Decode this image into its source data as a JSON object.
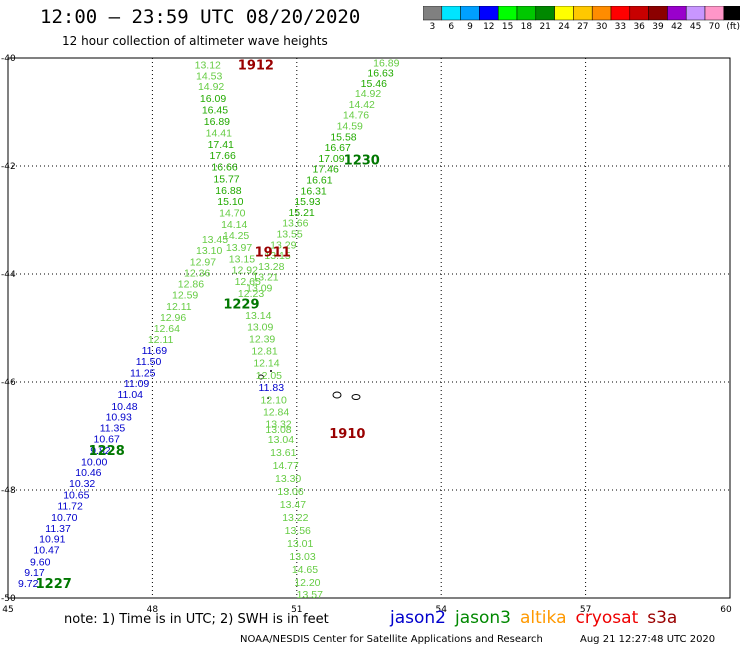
{
  "header": {
    "title": "12:00 — 23:59 UTC 08/20/2020",
    "subtitle": "12 hour collection of altimeter wave heights"
  },
  "colorbar": {
    "ticks": [
      "3",
      "6",
      "9",
      "12",
      "15",
      "18",
      "21",
      "24",
      "27",
      "30",
      "33",
      "36",
      "39",
      "42",
      "45",
      "70",
      "(ft)"
    ],
    "colors": [
      "#808080",
      "#00e5ff",
      "#00a0ff",
      "#0000ff",
      "#00ff00",
      "#00c800",
      "#008800",
      "#ffff00",
      "#ffc800",
      "#ff8c00",
      "#ff0000",
      "#c80000",
      "#8b0000",
      "#9900cc",
      "#c896ff",
      "#ff96c8",
      "#000000"
    ]
  },
  "footer": {
    "note": "note:  1) Time is in UTC;  2) SWH is in feet",
    "credit": "NOAA/NESDIS Center for Satellite Applications and Research",
    "timestamp": "Aug 21 12:27:48 UTC 2020"
  },
  "legend": [
    {
      "name": "jason2",
      "color": "#0000cc"
    },
    {
      "name": "jason3",
      "color": "#008800"
    },
    {
      "name": "altika",
      "color": "#ff9900"
    },
    {
      "name": "cryosat",
      "color": "#ee0000"
    },
    {
      "name": "s3a",
      "color": "#990000"
    }
  ],
  "chart_data": {
    "type": "scatter",
    "xlim": [
      45,
      60
    ],
    "ylim": [
      -50,
      -40
    ],
    "x_ticks": [
      "45",
      "48",
      "51",
      "54",
      "57",
      "60"
    ],
    "y_ticks": [
      "-40",
      "-42",
      "-44",
      "-46",
      "-48",
      "-50"
    ],
    "grid": true,
    "colors": {
      "light": "#66cc44",
      "mid": "#22aa00",
      "dark": "#007700",
      "blue": "#0000cc",
      "time_green": "#007700",
      "time_red": "#990000"
    },
    "series": [
      {
        "name": "jason2",
        "points": [
          {
            "x": 45.42,
            "y": -49.72,
            "v": "9.72",
            "c": "blue"
          },
          {
            "x": 45.55,
            "y": -49.52,
            "v": "9.17",
            "c": "blue"
          },
          {
            "x": 45.67,
            "y": -49.32,
            "v": "9.60",
            "c": "blue"
          },
          {
            "x": 45.8,
            "y": -49.1,
            "v": "10.47",
            "c": "blue"
          },
          {
            "x": 45.92,
            "y": -48.9,
            "v": "10.91",
            "c": "blue"
          },
          {
            "x": 46.04,
            "y": -48.7,
            "v": "11.37",
            "c": "blue"
          },
          {
            "x": 46.17,
            "y": -48.5,
            "v": "10.70",
            "c": "blue"
          },
          {
            "x": 46.29,
            "y": -48.29,
            "v": "11.72",
            "c": "blue"
          },
          {
            "x": 46.42,
            "y": -48.08,
            "v": "10.65",
            "c": "blue"
          },
          {
            "x": 46.54,
            "y": -47.87,
            "v": "10.32",
            "c": "blue"
          },
          {
            "x": 46.67,
            "y": -47.67,
            "v": "10.46",
            "c": "blue"
          },
          {
            "x": 46.79,
            "y": -47.47,
            "v": "10.00",
            "c": "blue"
          },
          {
            "x": 46.92,
            "y": -47.26,
            "v": "9.82",
            "c": "blue"
          },
          {
            "x": 47.05,
            "y": -47.05,
            "v": "10.67",
            "c": "blue"
          },
          {
            "x": 47.17,
            "y": -46.84,
            "v": "11.35",
            "c": "blue"
          },
          {
            "x": 47.3,
            "y": -46.64,
            "v": "10.93",
            "c": "blue"
          },
          {
            "x": 47.42,
            "y": -46.44,
            "v": "10.48",
            "c": "blue"
          },
          {
            "x": 47.54,
            "y": -46.22,
            "v": "11.04",
            "c": "blue"
          },
          {
            "x": 47.67,
            "y": -46.02,
            "v": "11.09",
            "c": "blue"
          },
          {
            "x": 47.8,
            "y": -45.82,
            "v": "11.25",
            "c": "blue"
          },
          {
            "x": 47.92,
            "y": -45.61,
            "v": "11.50",
            "c": "blue"
          },
          {
            "x": 48.04,
            "y": -45.41,
            "v": "11.69",
            "c": "blue"
          },
          {
            "x": 48.17,
            "y": -45.2,
            "v": "12.11",
            "c": "light"
          },
          {
            "x": 48.3,
            "y": -45.0,
            "v": "12.64",
            "c": "light"
          },
          {
            "x": 48.43,
            "y": -44.8,
            "v": "12.96",
            "c": "light"
          },
          {
            "x": 48.55,
            "y": -44.59,
            "v": "12.11",
            "c": "light"
          },
          {
            "x": 48.68,
            "y": -44.38,
            "v": "12.59",
            "c": "light"
          },
          {
            "x": 48.8,
            "y": -44.18,
            "v": "12.86",
            "c": "light"
          },
          {
            "x": 48.93,
            "y": -43.97,
            "v": "12.36",
            "c": "light"
          },
          {
            "x": 49.05,
            "y": -43.77,
            "v": "12.97",
            "c": "light"
          },
          {
            "x": 49.18,
            "y": -43.56,
            "v": "13.10",
            "c": "light"
          },
          {
            "x": 49.3,
            "y": -43.35,
            "v": "13.45",
            "c": "light"
          }
        ]
      },
      {
        "name": "jason3",
        "points": [
          {
            "x": 52.86,
            "y": -40.08,
            "v": "16.89",
            "c": "light"
          },
          {
            "x": 52.74,
            "y": -40.27,
            "v": "16.63",
            "c": "mid"
          },
          {
            "x": 52.6,
            "y": -40.46,
            "v": "15.46",
            "c": "mid"
          },
          {
            "x": 52.48,
            "y": -40.65,
            "v": "14.92",
            "c": "light"
          },
          {
            "x": 52.35,
            "y": -40.85,
            "v": "14.42",
            "c": "light"
          },
          {
            "x": 52.23,
            "y": -41.05,
            "v": "14.76",
            "c": "light"
          },
          {
            "x": 52.1,
            "y": -41.25,
            "v": "14.59",
            "c": "light"
          },
          {
            "x": 51.97,
            "y": -41.45,
            "v": "15.58",
            "c": "mid"
          },
          {
            "x": 51.85,
            "y": -41.65,
            "v": "16.67",
            "c": "mid"
          },
          {
            "x": 51.72,
            "y": -41.85,
            "v": "17.09",
            "c": "mid"
          },
          {
            "x": 51.6,
            "y": -42.05,
            "v": "17.46",
            "c": "mid"
          },
          {
            "x": 51.47,
            "y": -42.25,
            "v": "16.61",
            "c": "mid"
          },
          {
            "x": 51.35,
            "y": -42.45,
            "v": "16.31",
            "c": "mid"
          },
          {
            "x": 51.22,
            "y": -42.65,
            "v": "15.93",
            "c": "mid"
          },
          {
            "x": 51.1,
            "y": -42.85,
            "v": "15.21",
            "c": "mid"
          },
          {
            "x": 50.97,
            "y": -43.05,
            "v": "13.66",
            "c": "light"
          },
          {
            "x": 50.85,
            "y": -43.25,
            "v": "13.55",
            "c": "light"
          },
          {
            "x": 50.72,
            "y": -43.45,
            "v": "13.29",
            "c": "light"
          },
          {
            "x": 50.6,
            "y": -43.65,
            "v": "13.15",
            "c": "light"
          },
          {
            "x": 50.47,
            "y": -43.85,
            "v": "13.28",
            "c": "light"
          },
          {
            "x": 50.35,
            "y": -44.05,
            "v": "13.21",
            "c": "light"
          },
          {
            "x": 50.22,
            "y": -44.25,
            "v": "13.09",
            "c": "light"
          }
        ]
      },
      {
        "name": "s3a",
        "points": [
          {
            "x": 49.15,
            "y": -40.12,
            "v": "13.12",
            "c": "light"
          },
          {
            "x": 49.18,
            "y": -40.32,
            "v": "14.53",
            "c": "light"
          },
          {
            "x": 49.22,
            "y": -40.52,
            "v": "14.92",
            "c": "light"
          },
          {
            "x": 49.26,
            "y": -40.74,
            "v": "16.09",
            "c": "mid"
          },
          {
            "x": 49.3,
            "y": -40.95,
            "v": "16.45",
            "c": "mid"
          },
          {
            "x": 49.34,
            "y": -41.17,
            "v": "16.89",
            "c": "mid"
          },
          {
            "x": 49.38,
            "y": -41.38,
            "v": "14.41",
            "c": "light"
          },
          {
            "x": 49.42,
            "y": -41.59,
            "v": "17.41",
            "c": "mid"
          },
          {
            "x": 49.46,
            "y": -41.8,
            "v": "17.66",
            "c": "mid"
          },
          {
            "x": 49.5,
            "y": -42.01,
            "v": "16.66",
            "c": "mid"
          },
          {
            "x": 49.54,
            "y": -42.23,
            "v": "15.77",
            "c": "mid"
          },
          {
            "x": 49.58,
            "y": -42.44,
            "v": "16.88",
            "c": "mid"
          },
          {
            "x": 49.62,
            "y": -42.65,
            "v": "15.10",
            "c": "mid"
          },
          {
            "x": 49.66,
            "y": -42.86,
            "v": "14.70",
            "c": "light"
          },
          {
            "x": 49.7,
            "y": -43.07,
            "v": "14.14",
            "c": "light"
          },
          {
            "x": 49.74,
            "y": -43.28,
            "v": "14.25",
            "c": "light"
          },
          {
            "x": 49.8,
            "y": -43.5,
            "v": "13.97",
            "c": "light"
          },
          {
            "x": 49.86,
            "y": -43.71,
            "v": "13.15",
            "c": "light"
          },
          {
            "x": 49.92,
            "y": -43.92,
            "v": "12.92",
            "c": "light"
          },
          {
            "x": 49.98,
            "y": -44.13,
            "v": "12.65",
            "c": "light"
          },
          {
            "x": 50.05,
            "y": -44.35,
            "v": "12.23",
            "c": "light"
          },
          {
            "x": 50.2,
            "y": -44.76,
            "v": "13.14",
            "c": "light"
          },
          {
            "x": 50.24,
            "y": -44.97,
            "v": "13.09",
            "c": "light"
          },
          {
            "x": 50.28,
            "y": -45.19,
            "v": "12.39",
            "c": "light"
          },
          {
            "x": 50.33,
            "y": -45.42,
            "v": "12.81",
            "c": "light"
          },
          {
            "x": 50.37,
            "y": -45.64,
            "v": "12.14",
            "c": "light"
          },
          {
            "x": 50.42,
            "y": -45.87,
            "v": "12.05",
            "c": "light"
          },
          {
            "x": 50.47,
            "y": -46.09,
            "v": "11.83",
            "c": "blue"
          },
          {
            "x": 50.52,
            "y": -46.32,
            "v": "12.10",
            "c": "light"
          },
          {
            "x": 50.57,
            "y": -46.55,
            "v": "12.84",
            "c": "light"
          },
          {
            "x": 50.62,
            "y": -46.77,
            "v": "13.32",
            "c": "light"
          },
          {
            "x": 50.62,
            "y": -46.87,
            "v": "13.08",
            "c": "light"
          },
          {
            "x": 50.67,
            "y": -47.06,
            "v": "13.04",
            "c": "light"
          },
          {
            "x": 50.72,
            "y": -47.3,
            "v": "13.61",
            "c": "light"
          },
          {
            "x": 50.77,
            "y": -47.54,
            "v": "14.77",
            "c": "light"
          },
          {
            "x": 50.82,
            "y": -47.78,
            "v": "13.30",
            "c": "light"
          },
          {
            "x": 50.87,
            "y": -48.02,
            "v": "13.06",
            "c": "light"
          },
          {
            "x": 50.92,
            "y": -48.26,
            "v": "13.47",
            "c": "light"
          },
          {
            "x": 50.97,
            "y": -48.5,
            "v": "13.22",
            "c": "light"
          },
          {
            "x": 51.02,
            "y": -48.74,
            "v": "13.56",
            "c": "light"
          },
          {
            "x": 51.07,
            "y": -48.98,
            "v": "13.01",
            "c": "light"
          },
          {
            "x": 51.12,
            "y": -49.22,
            "v": "13.03",
            "c": "light"
          },
          {
            "x": 51.17,
            "y": -49.46,
            "v": "14.65",
            "c": "light"
          },
          {
            "x": 51.22,
            "y": -49.7,
            "v": "12.20",
            "c": "light"
          },
          {
            "x": 51.27,
            "y": -49.93,
            "v": "13.57",
            "c": "light"
          }
        ]
      }
    ],
    "time_labels": [
      {
        "x": 50.15,
        "y": -40.12,
        "text": "1912",
        "c": "time_red"
      },
      {
        "x": 52.35,
        "y": -41.88,
        "text": "1230",
        "c": "time_green"
      },
      {
        "x": 50.5,
        "y": -43.58,
        "text": "1911",
        "c": "time_red"
      },
      {
        "x": 49.85,
        "y": -44.55,
        "text": "1229",
        "c": "time_green"
      },
      {
        "x": 52.05,
        "y": -46.94,
        "text": "1910",
        "c": "time_red"
      },
      {
        "x": 47.05,
        "y": -47.26,
        "text": "1228",
        "c": "time_green"
      },
      {
        "x": 45.95,
        "y": -49.72,
        "text": "1227",
        "c": "time_green"
      }
    ]
  }
}
